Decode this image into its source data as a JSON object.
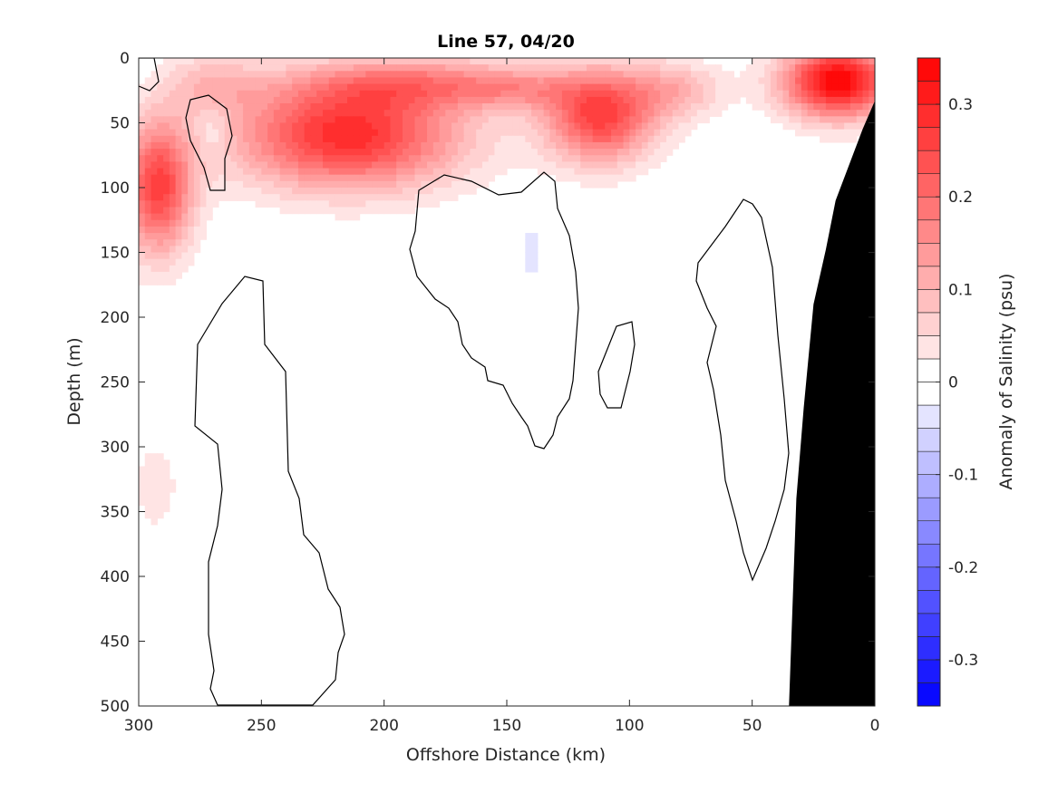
{
  "chart_data": {
    "type": "heatmap",
    "subtype": "filled-contour section",
    "title": "Line 57, 04/20",
    "xlabel": "Offshore Distance (km)",
    "ylabel": "Depth (m)",
    "colorbar_label": "Anomaly of Salinity (psu)",
    "x_axis": {
      "range": [
        300,
        0
      ],
      "reversed": true,
      "ticks": [
        300,
        250,
        200,
        150,
        100,
        50,
        0
      ],
      "tick_labels": [
        "300",
        "250",
        "200",
        "150",
        "100",
        "50",
        "0"
      ]
    },
    "y_axis": {
      "range": [
        0,
        500
      ],
      "reversed": true,
      "ticks": [
        0,
        50,
        100,
        150,
        200,
        250,
        300,
        350,
        400,
        450,
        500
      ],
      "tick_labels": [
        "0",
        "50",
        "100",
        "150",
        "200",
        "250",
        "300",
        "350",
        "400",
        "450",
        "500"
      ]
    },
    "colorbar": {
      "range": [
        -0.35,
        0.35
      ],
      "level_step": 0.025,
      "ticks": [
        -0.3,
        -0.2,
        -0.1,
        0,
        0.1,
        0.2,
        0.3
      ],
      "tick_labels": [
        "-0.3",
        "-0.2",
        "-0.1",
        "0",
        "0.1",
        "0.2",
        "0.3"
      ],
      "colormap": "blue-white-red",
      "low_color": "#0000ff",
      "high_color": "#ff0000",
      "mid_color": "#ffffff"
    },
    "grid": false,
    "zero_contour_color": "#000000",
    "bathymetry_color": "#000000",
    "bathymetry_profile": [
      {
        "x": 0,
        "y": 33
      },
      {
        "x": 5,
        "y": 55
      },
      {
        "x": 10,
        "y": 80
      },
      {
        "x": 16,
        "y": 110
      },
      {
        "x": 20,
        "y": 148
      },
      {
        "x": 25,
        "y": 190
      },
      {
        "x": 29,
        "y": 270
      },
      {
        "x": 32,
        "y": 340
      },
      {
        "x": 35,
        "y": 500
      }
    ],
    "anomaly_features": [
      {
        "x": 15,
        "y": 18,
        "rx": 22,
        "ry": 28,
        "value": 0.35
      },
      {
        "x": 112,
        "y": 45,
        "rx": 22,
        "ry": 35,
        "value": 0.26
      },
      {
        "x": 82,
        "y": 25,
        "rx": 20,
        "ry": 22,
        "value": 0.1
      },
      {
        "x": 215,
        "y": 60,
        "rx": 45,
        "ry": 40,
        "value": 0.29
      },
      {
        "x": 185,
        "y": 20,
        "rx": 50,
        "ry": 20,
        "value": 0.15
      },
      {
        "x": 292,
        "y": 100,
        "rx": 14,
        "ry": 50,
        "value": 0.26
      },
      {
        "x": 145,
        "y": 25,
        "rx": 22,
        "ry": 15,
        "value": 0.07
      },
      {
        "x": 270,
        "y": 20,
        "rx": 20,
        "ry": 25,
        "value": 0.08
      },
      {
        "x": 270,
        "y": 55,
        "rx": 7,
        "ry": 20,
        "value": -0.04
      },
      {
        "x": 140,
        "y": 150,
        "rx": 8,
        "ry": 35,
        "value": -0.03
      },
      {
        "x": 299,
        "y": 5,
        "rx": 4,
        "ry": 10,
        "value": -0.03
      },
      {
        "x": 293,
        "y": 330,
        "rx": 10,
        "ry": 40,
        "value": 0.04
      },
      {
        "x": 172,
        "y": 440,
        "rx": 20,
        "ry": 65,
        "value": 0.02
      },
      {
        "x": 100,
        "y": 430,
        "rx": 35,
        "ry": 70,
        "value": 0.025
      },
      {
        "x": 295,
        "y": 450,
        "rx": 8,
        "ry": 50,
        "value": 0.015
      }
    ]
  }
}
